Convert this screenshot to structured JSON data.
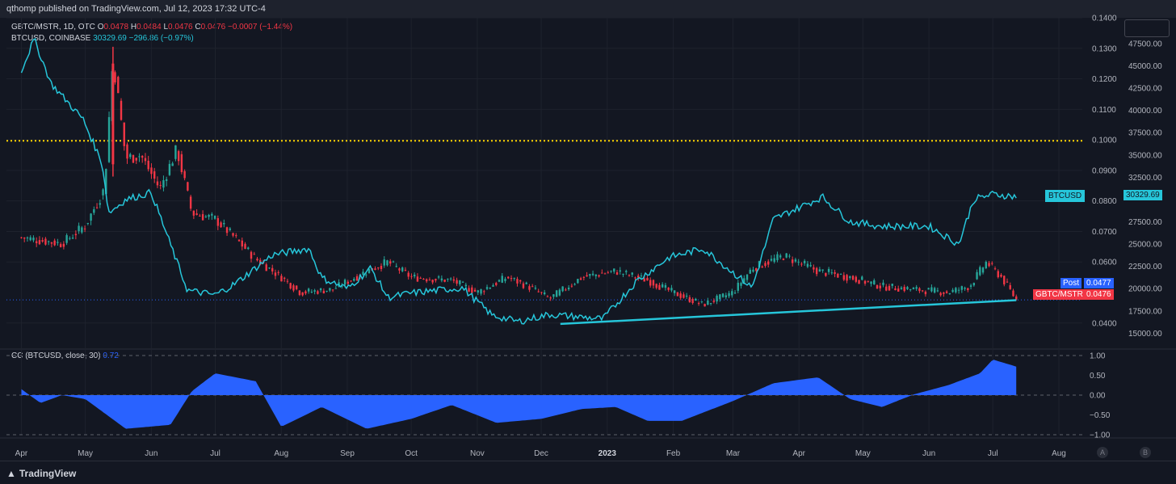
{
  "header": {
    "text": "qthomp published on TradingView.com, Jul 12, 2023 17:32 UTC-4"
  },
  "legend": {
    "main": {
      "symbol": "GBTC/MSTR, 1D, OTC",
      "o_label": "O",
      "o": "0.0478",
      "h_label": "H",
      "h": "0.0484",
      "l_label": "L",
      "l": "0.0476",
      "c_label": "C",
      "c": "0.0476",
      "change": "−0.0007 (−1.44%)"
    },
    "overlay": {
      "symbol": "BTCUSD, COINBASE",
      "value": "30329.69",
      "change": "−296.86 (−0.97%)"
    },
    "indicator": {
      "name": "CC (BTCUSD, close, 30)",
      "value": "0.72"
    }
  },
  "price_labels": {
    "btc_tag": "BTCUSD",
    "btc_value": "30329.69",
    "post_tag": "Post",
    "post_value": "0.0477",
    "pair_tag": "GBTC/MSTR",
    "pair_value": "0.0476"
  },
  "footer": {
    "brand": "TradingView"
  },
  "corner_buttons": [
    "A",
    "B"
  ],
  "colors": {
    "background": "#131722",
    "up": "#26a69a",
    "down": "#f23645",
    "btc_line": "#26c6da",
    "cc_fill": "#2962ff",
    "level_line": "#ffd600"
  },
  "chart_data": [
    {
      "type": "candlestick",
      "series_name": "GBTC/MSTR",
      "axis": "right-inner",
      "ylim": [
        0.032,
        0.14
      ],
      "y_ticks": [
        "0.1400",
        "0.1300",
        "0.1200",
        "0.1100",
        "0.1000",
        "0.0900",
        "0.0800",
        "0.0700",
        "0.0600",
        "0.0400"
      ],
      "x_ticks": [
        "Apr",
        "May",
        "Jun",
        "Jul",
        "Aug",
        "Sep",
        "Oct",
        "Nov",
        "Dec",
        "2023",
        "Feb",
        "Mar",
        "Apr",
        "May",
        "Jun",
        "Jul",
        "Aug"
      ],
      "horizontal_level": 0.0997,
      "trendline": {
        "from": [
          "Dec 10 2022",
          0.0397
        ],
        "to": [
          "Jul 12 2023",
          0.0475
        ]
      },
      "points": [
        [
          "2022-04",
          0.068
        ],
        [
          "2022-04-20",
          0.066
        ],
        [
          "2022-05-01",
          0.072
        ],
        [
          "2022-05-10",
          0.084
        ],
        [
          "2022-05-14",
          0.127
        ],
        [
          "2022-05-20",
          0.094
        ],
        [
          "2022-05-27",
          0.095
        ],
        [
          "2022-06-05",
          0.084
        ],
        [
          "2022-06-13",
          0.097
        ],
        [
          "2022-06-20",
          0.076
        ],
        [
          "2022-07-01",
          0.074
        ],
        [
          "2022-07-10",
          0.068
        ],
        [
          "2022-07-20",
          0.061
        ],
        [
          "2022-08-01",
          0.055
        ],
        [
          "2022-08-10",
          0.05
        ],
        [
          "2022-08-25",
          0.051
        ],
        [
          "2022-09-10",
          0.057
        ],
        [
          "2022-09-20",
          0.06
        ],
        [
          "2022-10-01",
          0.055
        ],
        [
          "2022-10-20",
          0.054
        ],
        [
          "2022-11-01",
          0.05
        ],
        [
          "2022-11-15",
          0.055
        ],
        [
          "2022-11-25",
          0.052
        ],
        [
          "2022-12-05",
          0.048
        ],
        [
          "2022-12-20",
          0.055
        ],
        [
          "2023-01-05",
          0.057
        ],
        [
          "2023-01-20",
          0.054
        ],
        [
          "2023-02-01",
          0.05
        ],
        [
          "2023-02-15",
          0.046
        ],
        [
          "2023-03-01",
          0.05
        ],
        [
          "2023-03-10",
          0.058
        ],
        [
          "2023-03-25",
          0.062
        ],
        [
          "2023-04-10",
          0.057
        ],
        [
          "2023-04-25",
          0.055
        ],
        [
          "2023-05-10",
          0.052
        ],
        [
          "2023-05-25",
          0.051
        ],
        [
          "2023-06-10",
          0.05
        ],
        [
          "2023-06-20",
          0.052
        ],
        [
          "2023-06-28",
          0.06
        ],
        [
          "2023-07-05",
          0.055
        ],
        [
          "2023-07-12",
          0.0476
        ]
      ]
    },
    {
      "type": "line",
      "series_name": "BTCUSD",
      "axis": "right-outer",
      "ylim": [
        13400,
        50400
      ],
      "y_ticks": [
        "47500.00",
        "45000.00",
        "42500.00",
        "40000.00",
        "37500.00",
        "35000.00",
        "32500.00",
        "27500.00",
        "25000.00",
        "22500.00",
        "20000.00",
        "17500.00",
        "15000.00"
      ],
      "points": [
        [
          "2022-04-01",
          44500
        ],
        [
          "2022-04-07",
          48000
        ],
        [
          "2022-04-15",
          43000
        ],
        [
          "2022-04-30",
          39000
        ],
        [
          "2022-05-09",
          34000
        ],
        [
          "2022-05-12",
          28500
        ],
        [
          "2022-05-20",
          30000
        ],
        [
          "2022-06-01",
          30800
        ],
        [
          "2022-06-13",
          23000
        ],
        [
          "2022-06-18",
          19800
        ],
        [
          "2022-07-01",
          19300
        ],
        [
          "2022-07-10",
          20500
        ],
        [
          "2022-07-28",
          23800
        ],
        [
          "2022-08-14",
          24500
        ],
        [
          "2022-08-20",
          21200
        ],
        [
          "2022-09-01",
          20000
        ],
        [
          "2022-09-12",
          22300
        ],
        [
          "2022-09-20",
          19000
        ],
        [
          "2022-10-01",
          19500
        ],
        [
          "2022-10-25",
          20100
        ],
        [
          "2022-11-08",
          17000
        ],
        [
          "2022-11-20",
          16300
        ],
        [
          "2022-12-05",
          17100
        ],
        [
          "2022-12-30",
          16600
        ],
        [
          "2023-01-15",
          20900
        ],
        [
          "2023-01-30",
          23500
        ],
        [
          "2023-02-15",
          24500
        ],
        [
          "2023-03-10",
          20100
        ],
        [
          "2023-03-20",
          27800
        ],
        [
          "2023-04-12",
          30300
        ],
        [
          "2023-04-25",
          27500
        ],
        [
          "2023-05-10",
          27000
        ],
        [
          "2023-06-01",
          27000
        ],
        [
          "2023-06-15",
          25000
        ],
        [
          "2023-06-22",
          30000
        ],
        [
          "2023-07-01",
          30600
        ],
        [
          "2023-07-12",
          30329.69
        ]
      ]
    },
    {
      "type": "area",
      "series_name": "CC (BTCUSD, close, 30)",
      "ylim": [
        -1.0,
        1.0
      ],
      "y_ticks": [
        "1.00",
        "0.50",
        "0.00",
        "−0.50",
        "−1.00"
      ],
      "points": [
        [
          "2022-04-01",
          0.15
        ],
        [
          "2022-04-10",
          -0.2
        ],
        [
          "2022-04-20",
          0.0
        ],
        [
          "2022-05-01",
          -0.1
        ],
        [
          "2022-05-20",
          -0.85
        ],
        [
          "2022-06-10",
          -0.75
        ],
        [
          "2022-06-20",
          0.1
        ],
        [
          "2022-07-01",
          0.55
        ],
        [
          "2022-07-20",
          0.35
        ],
        [
          "2022-08-01",
          -0.8
        ],
        [
          "2022-08-20",
          -0.3
        ],
        [
          "2022-09-10",
          -0.85
        ],
        [
          "2022-10-01",
          -0.6
        ],
        [
          "2022-10-20",
          -0.25
        ],
        [
          "2022-11-10",
          -0.7
        ],
        [
          "2022-12-01",
          -0.6
        ],
        [
          "2022-12-20",
          -0.35
        ],
        [
          "2023-01-05",
          -0.3
        ],
        [
          "2023-01-20",
          -0.65
        ],
        [
          "2023-02-05",
          -0.65
        ],
        [
          "2023-03-01",
          -0.15
        ],
        [
          "2023-03-20",
          0.3
        ],
        [
          "2023-04-10",
          0.45
        ],
        [
          "2023-04-25",
          -0.1
        ],
        [
          "2023-05-10",
          -0.3
        ],
        [
          "2023-05-25",
          0.02
        ],
        [
          "2023-06-10",
          0.25
        ],
        [
          "2023-06-25",
          0.55
        ],
        [
          "2023-07-01",
          0.9
        ],
        [
          "2023-07-12",
          0.72
        ]
      ]
    }
  ]
}
